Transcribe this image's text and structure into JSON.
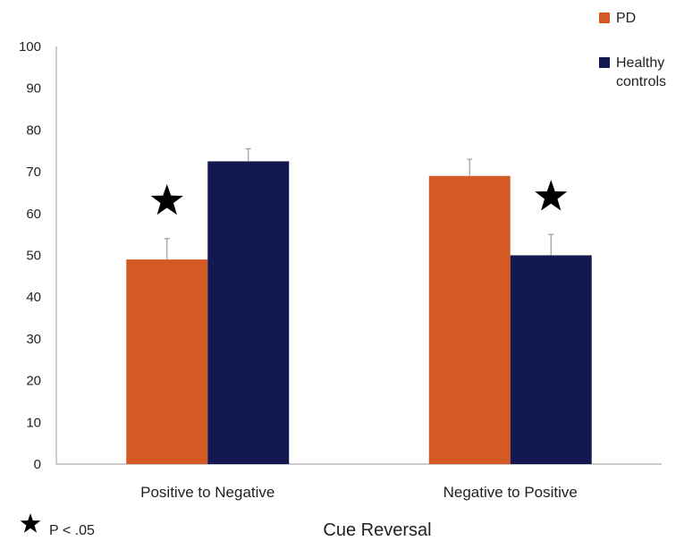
{
  "chart_data": {
    "type": "bar",
    "title": "",
    "xlabel": "Cue Reversal",
    "ylabel": "",
    "ylim": [
      0,
      100
    ],
    "yticks": [
      0,
      10,
      20,
      30,
      40,
      50,
      60,
      70,
      80,
      90,
      100
    ],
    "categories": [
      "Positive to Negative",
      "Negative to Positive"
    ],
    "series": [
      {
        "name": "PD",
        "color": "#d35a22",
        "values": [
          49,
          69
        ],
        "errors": [
          5,
          4
        ]
      },
      {
        "name": "Healthy controls",
        "name_lines": [
          "Healthy",
          "controls"
        ],
        "color": "#141850",
        "values": [
          72.5,
          50
        ],
        "errors": [
          3,
          5
        ]
      }
    ],
    "significance": [
      {
        "category": "Positive to Negative",
        "series": "PD"
      },
      {
        "category": "Negative to Positive",
        "series": "Healthy controls"
      }
    ],
    "significance_legend": "P < .05",
    "legend_position": "top-right",
    "grid": false
  }
}
